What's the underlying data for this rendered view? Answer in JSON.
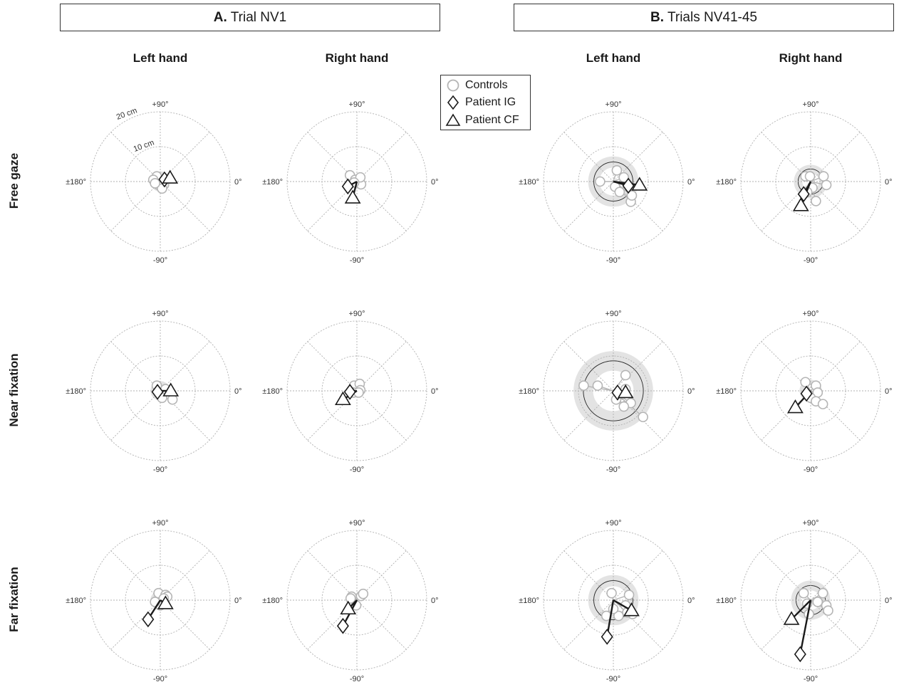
{
  "panels": [
    {
      "letter": "A.",
      "title": "Trial NV1"
    },
    {
      "letter": "B.",
      "title": "Trials NV41-45"
    }
  ],
  "column_headers": [
    "Left hand",
    "Right hand",
    "Left hand",
    "Right hand"
  ],
  "row_labels": [
    "Free gaze",
    "Near fixation",
    "Far fixation"
  ],
  "legend": [
    {
      "name": "Controls",
      "symbol": "circle",
      "color": "#b5b5b5"
    },
    {
      "name": "Patient IG",
      "symbol": "diamond",
      "color": "#1a1a1a"
    },
    {
      "name": "Patient CF",
      "symbol": "triangle",
      "color": "#1a1a1a"
    }
  ],
  "axis_labels": {
    "top": "+90°",
    "bottom": "-90°",
    "left": "±180°",
    "right": "0°"
  },
  "ring_labels": [
    "10 cm",
    "20 cm"
  ],
  "colors": {
    "controls": "#b5b5b5",
    "patients": "#1a1a1a",
    "band": "#e3e3e3",
    "grid": "#b0b0b0"
  },
  "chart_data": [
    {
      "type": "scatter",
      "panel": "A. Trial NV1",
      "condition": "Free gaze",
      "hand": "Left hand",
      "mean_radius_cm": 2.6,
      "band_width_cm": 0.3,
      "controls_cm": [
        [
          -1,
          1.5
        ],
        [
          -2,
          0.5
        ],
        [
          -0.5,
          -1
        ],
        [
          1,
          -1
        ],
        [
          0.5,
          -2
        ],
        [
          -1.5,
          -0.5
        ]
      ],
      "patient_IG_cm": [
        1.2,
        0.6
      ],
      "patient_CF_cm": [
        2.8,
        1.0
      ]
    },
    {
      "type": "scatter",
      "panel": "A. Trial NV1",
      "condition": "Free gaze",
      "hand": "Right hand",
      "mean_radius_cm": 0,
      "band_width_cm": 0,
      "controls_cm": [
        [
          -2,
          1.8
        ],
        [
          -0.5,
          0.5
        ],
        [
          1.2,
          -0.8
        ],
        [
          1.0,
          1.2
        ],
        [
          -0.8,
          -0.3
        ]
      ],
      "patient_IG_cm": [
        -2.6,
        -1.4
      ],
      "patient_CF_cm": [
        -1.2,
        -4.7
      ]
    },
    {
      "type": "scatter",
      "panel": "B. Trials NV41-45",
      "condition": "Free gaze",
      "hand": "Left hand",
      "mean_radius_cm": 5.6,
      "band_width_cm": 1.6,
      "controls_cm": [
        [
          1.0,
          3.2
        ],
        [
          -3.8,
          0.0
        ],
        [
          0.5,
          -1.5
        ],
        [
          3.0,
          -0.5
        ],
        [
          1.8,
          -3.0
        ],
        [
          5.0,
          -5.8
        ],
        [
          5.3,
          -4.0
        ],
        [
          3.0,
          1.2
        ]
      ],
      "patient_IG_cm": [
        4.3,
        -1.2
      ],
      "patient_CF_cm": [
        7.5,
        -1.0
      ]
    },
    {
      "type": "scatter",
      "panel": "B. Trials NV41-45",
      "condition": "Free gaze",
      "hand": "Right hand",
      "mean_radius_cm": 3.6,
      "band_width_cm": 1.2,
      "controls_cm": [
        [
          -1.5,
          1.5
        ],
        [
          3.7,
          1.5
        ],
        [
          4.5,
          -1.0
        ],
        [
          0.5,
          -1.8
        ],
        [
          -1.0,
          -3.0
        ],
        [
          1.5,
          -5.6
        ],
        [
          -0.2,
          1.5
        ]
      ],
      "patient_IG_cm": [
        -2.0,
        -3.6
      ],
      "patient_CF_cm": [
        -2.8,
        -6.9
      ]
    },
    {
      "type": "scatter",
      "panel": "A. Trial NV1",
      "condition": "Near fixation",
      "hand": "Left hand",
      "mean_radius_cm": 2.0,
      "band_width_cm": 0.8,
      "controls_cm": [
        [
          -1.0,
          1.5
        ],
        [
          0.0,
          -0.5
        ],
        [
          2.0,
          -0.8
        ],
        [
          3.5,
          -2.5
        ],
        [
          1.5,
          0.5
        ],
        [
          0.5,
          -2.0
        ]
      ],
      "patient_IG_cm": [
        -0.8,
        -0.3
      ],
      "patient_CF_cm": [
        3.0,
        0.0
      ]
    },
    {
      "type": "scatter",
      "panel": "A. Trial NV1",
      "condition": "Near fixation",
      "hand": "Right hand",
      "mean_radius_cm": 0,
      "band_width_cm": 0,
      "controls_cm": [
        [
          -0.8,
          1.5
        ],
        [
          0.8,
          2.0
        ],
        [
          1.0,
          0.2
        ],
        [
          -1.0,
          -0.5
        ],
        [
          0.5,
          -0.5
        ]
      ],
      "patient_IG_cm": [
        -2.0,
        -0.3
      ],
      "patient_CF_cm": [
        -4.0,
        -2.5
      ]
    },
    {
      "type": "scatter",
      "panel": "B. Trials NV41-45",
      "condition": "Near fixation",
      "hand": "Left hand",
      "mean_radius_cm": 8.6,
      "band_width_cm": 2.8,
      "controls_cm": [
        [
          3.5,
          4.5
        ],
        [
          -4.5,
          1.5
        ],
        [
          3.5,
          0.5
        ],
        [
          5.0,
          -3.5
        ],
        [
          3.0,
          -4.5
        ],
        [
          0.8,
          -2.5
        ],
        [
          8.5,
          -7.5
        ],
        [
          -8.5,
          1.5
        ]
      ],
      "patient_IG_cm": [
        1.2,
        -0.5
      ],
      "patient_CF_cm": [
        3.5,
        -0.5
      ]
    },
    {
      "type": "scatter",
      "panel": "B. Trials NV41-45",
      "condition": "Near fixation",
      "hand": "Right hand",
      "mean_radius_cm": 2.6,
      "band_width_cm": 0.6,
      "controls_cm": [
        [
          -1.5,
          2.5
        ],
        [
          1.5,
          1.5
        ],
        [
          2.0,
          -0.5
        ],
        [
          0.0,
          -2.0
        ],
        [
          1.5,
          -3.0
        ],
        [
          3.5,
          -3.8
        ]
      ],
      "patient_IG_cm": [
        -1.2,
        -0.8
      ],
      "patient_CF_cm": [
        -4.4,
        -4.8
      ]
    },
    {
      "type": "scatter",
      "panel": "A. Trial NV1",
      "condition": "Far fixation",
      "hand": "Left hand",
      "mean_radius_cm": 2.2,
      "band_width_cm": 0.6,
      "controls_cm": [
        [
          -0.5,
          2.0
        ],
        [
          1.5,
          1.5
        ],
        [
          2.0,
          1.0
        ],
        [
          0.0,
          -1.5
        ],
        [
          1.0,
          0.5
        ],
        [
          -1.5,
          -0.5
        ]
      ],
      "patient_IG_cm": [
        -3.5,
        -5.5
      ],
      "patient_CF_cm": [
        1.5,
        -1.0
      ]
    },
    {
      "type": "scatter",
      "panel": "A. Trial NV1",
      "condition": "Far fixation",
      "hand": "Right hand",
      "mean_radius_cm": 0,
      "band_width_cm": 0,
      "controls_cm": [
        [
          -1.5,
          1.0
        ],
        [
          1.2,
          1.2
        ],
        [
          -0.2,
          -1.5
        ],
        [
          -1.8,
          0.5
        ],
        [
          1.8,
          1.8
        ]
      ],
      "patient_IG_cm": [
        -4.0,
        -7.4
      ],
      "patient_CF_cm": [
        -2.5,
        -2.5
      ]
    },
    {
      "type": "scatter",
      "panel": "B. Trials NV41-45",
      "condition": "Far fixation",
      "hand": "Left hand",
      "mean_radius_cm": 5.6,
      "band_width_cm": 1.6,
      "controls_cm": [
        [
          -0.5,
          2.0
        ],
        [
          4.5,
          1.5
        ],
        [
          3.5,
          -1.5
        ],
        [
          5.5,
          -4.0
        ],
        [
          1.5,
          -4.5
        ],
        [
          -2.0,
          -4.5
        ],
        [
          0.0,
          -2.5
        ],
        [
          4.0,
          -3.5
        ]
      ],
      "patient_IG_cm": [
        -1.8,
        -10.5
      ],
      "patient_CF_cm": [
        5.2,
        -3.0
      ]
    },
    {
      "type": "scatter",
      "panel": "B. Trials NV41-45",
      "condition": "Far fixation",
      "hand": "Right hand",
      "mean_radius_cm": 4.2,
      "band_width_cm": 1.4,
      "controls_cm": [
        [
          -2.0,
          2.0
        ],
        [
          3.5,
          2.0
        ],
        [
          4.5,
          -1.5
        ],
        [
          -0.5,
          -4.0
        ],
        [
          5.0,
          -3.0
        ],
        [
          2.0,
          -0.5
        ],
        [
          -1.0,
          -1.0
        ]
      ],
      "patient_IG_cm": [
        -3.0,
        -15.5
      ],
      "patient_CF_cm": [
        -5.5,
        -5.5
      ]
    }
  ]
}
